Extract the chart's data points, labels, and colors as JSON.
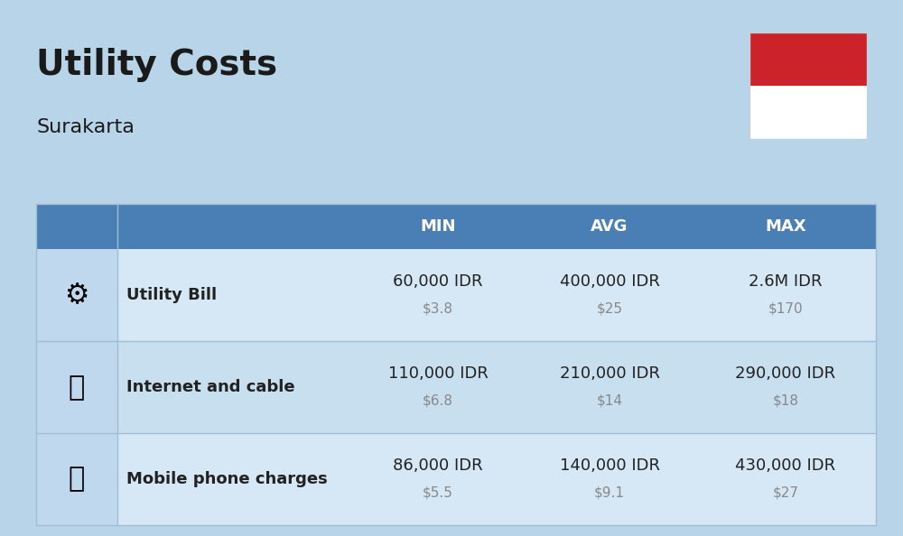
{
  "title": "Utility Costs",
  "subtitle": "Surakarta",
  "background_color": "#b8d4e8",
  "header_color": "#4a7fb5",
  "header_text_color": "#ffffff",
  "row_colors": [
    "#d6e8f5",
    "#c8dff0"
  ],
  "icon_col_color": "#c0d8ee",
  "divider_color": "#a0bdd4",
  "columns": [
    "",
    "",
    "MIN",
    "AVG",
    "MAX"
  ],
  "rows": [
    {
      "label": "Utility Bill",
      "min_idr": "60,000 IDR",
      "min_usd": "$3.8",
      "avg_idr": "400,000 IDR",
      "avg_usd": "$25",
      "max_idr": "2.6M IDR",
      "max_usd": "$170"
    },
    {
      "label": "Internet and cable",
      "min_idr": "110,000 IDR",
      "min_usd": "$6.8",
      "avg_idr": "210,000 IDR",
      "avg_usd": "$14",
      "max_idr": "290,000 IDR",
      "max_usd": "$18"
    },
    {
      "label": "Mobile phone charges",
      "min_idr": "86,000 IDR",
      "min_usd": "$5.5",
      "avg_idr": "140,000 IDR",
      "avg_usd": "$9.1",
      "max_idr": "430,000 IDR",
      "max_usd": "$27"
    }
  ],
  "flag_red": "#cc2229",
  "flag_white": "#ffffff",
  "cell_text_color": "#222222",
  "usd_text_color": "#888888",
  "label_fontsize": 13,
  "header_fontsize": 13,
  "value_fontsize": 13,
  "usd_fontsize": 11
}
